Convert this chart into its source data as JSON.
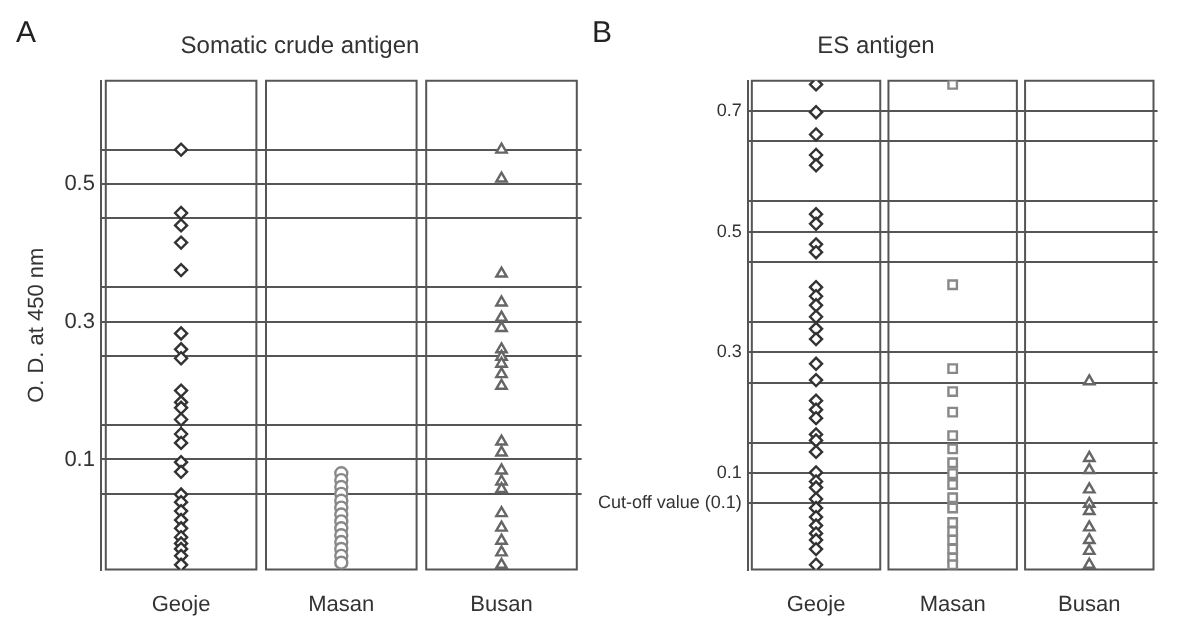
{
  "chart_data": [
    {
      "type": "scatter",
      "title": "Somatic crude antigen",
      "ylabel": "O. D. at 450 nm",
      "annotations": [
        "A"
      ],
      "categories": [
        "Geoje",
        "Masan",
        "Busan"
      ],
      "ylim": [
        -0.06,
        0.65
      ],
      "yticks": [
        {
          "value": 0.05,
          "label": null
        },
        {
          "value": 0.1,
          "label": "0.1"
        },
        {
          "value": 0.15,
          "label": null
        },
        {
          "value": 0.25,
          "label": null
        },
        {
          "value": 0.3,
          "label": "0.3"
        },
        {
          "value": 0.35,
          "label": null
        },
        {
          "value": 0.45,
          "label": null
        },
        {
          "value": 0.5,
          "label": "0.5"
        },
        {
          "value": 0.55,
          "label": null
        }
      ],
      "grid": "y",
      "series": [
        {
          "color": "#333333",
          "marker": "diamond",
          "x": [
            "Geoje",
            "Geoje",
            "Geoje",
            "Geoje",
            "Geoje",
            "Geoje",
            "Geoje",
            "Geoje",
            "Geoje",
            "Geoje",
            "Geoje",
            "Geoje",
            "Geoje",
            "Geoje",
            "Geoje",
            "Geoje",
            "Geoje",
            "Geoje",
            "Geoje",
            "Geoje",
            "Geoje",
            "Geoje",
            "Geoje",
            "Geoje",
            "Geoje",
            "Geoje"
          ],
          "values": [
            0.55,
            0.458,
            0.44,
            0.415,
            0.375,
            0.283,
            0.26,
            0.247,
            0.2,
            0.183,
            0.175,
            0.158,
            0.137,
            0.124,
            0.096,
            0.082,
            0.049,
            0.038,
            0.025,
            0.012,
            0.0,
            -0.013,
            -0.022,
            -0.03,
            -0.04,
            -0.053
          ]
        },
        {
          "color": "#888888",
          "marker": "circle",
          "x": [
            "Masan",
            "Masan",
            "Masan",
            "Masan",
            "Masan",
            "Masan",
            "Masan",
            "Masan",
            "Masan",
            "Masan",
            "Masan",
            "Masan",
            "Masan",
            "Masan"
          ],
          "values": [
            0.08,
            0.07,
            0.06,
            0.05,
            0.04,
            0.03,
            0.02,
            0.01,
            0.0,
            -0.01,
            -0.02,
            -0.03,
            -0.04,
            -0.05
          ]
        },
        {
          "color": "#666666",
          "marker": "triangle",
          "x": [
            "Busan",
            "Busan",
            "Busan",
            "Busan",
            "Busan",
            "Busan",
            "Busan",
            "Busan",
            "Busan",
            "Busan",
            "Busan",
            "Busan",
            "Busan",
            "Busan",
            "Busan",
            "Busan",
            "Busan",
            "Busan",
            "Busan",
            "Busan",
            "Busan"
          ],
          "values": [
            0.55,
            0.508,
            0.37,
            0.328,
            0.306,
            0.291,
            0.26,
            0.249,
            0.239,
            0.224,
            0.207,
            0.126,
            0.11,
            0.084,
            0.068,
            0.057,
            0.022,
            0.001,
            -0.018,
            -0.035,
            -0.053
          ]
        }
      ]
    },
    {
      "type": "scatter",
      "title": "ES antigen",
      "annotations": [
        "B"
      ],
      "categories": [
        "Geoje",
        "Masan",
        "Busan"
      ],
      "ylim": [
        -0.06,
        0.75
      ],
      "yticks": [
        {
          "value": 0.05,
          "label": "Cut-off value (0.1)"
        },
        {
          "value": 0.1,
          "label": "0.1"
        },
        {
          "value": 0.15,
          "label": null
        },
        {
          "value": 0.25,
          "label": null
        },
        {
          "value": 0.3,
          "label": "0.3"
        },
        {
          "value": 0.35,
          "label": null
        },
        {
          "value": 0.45,
          "label": null
        },
        {
          "value": 0.5,
          "label": "0.5"
        },
        {
          "value": 0.55,
          "label": null
        },
        {
          "value": 0.65,
          "label": null
        },
        {
          "value": 0.7,
          "label": "0.7"
        }
      ],
      "grid": "y",
      "series": [
        {
          "color": "#333333",
          "marker": "diamond",
          "x": [
            "Geoje",
            "Geoje",
            "Geoje",
            "Geoje",
            "Geoje",
            "Geoje",
            "Geoje",
            "Geoje",
            "Geoje",
            "Geoje",
            "Geoje",
            "Geoje",
            "Geoje",
            "Geoje",
            "Geoje",
            "Geoje",
            "Geoje",
            "Geoje",
            "Geoje",
            "Geoje",
            "Geoje",
            "Geoje",
            "Geoje",
            "Geoje",
            "Geoje",
            "Geoje",
            "Geoje",
            "Geoje",
            "Geoje",
            "Geoje",
            "Geoje",
            "Geoje",
            "Geoje",
            "Geoje"
          ],
          "values": [
            0.744,
            0.698,
            0.661,
            0.627,
            0.61,
            0.529,
            0.513,
            0.479,
            0.466,
            0.408,
            0.393,
            0.378,
            0.359,
            0.339,
            0.322,
            0.281,
            0.254,
            0.22,
            0.205,
            0.191,
            0.164,
            0.154,
            0.135,
            0.101,
            0.086,
            0.076,
            0.057,
            0.042,
            0.027,
            0.013,
            0.0,
            -0.011,
            -0.026,
            -0.052
          ]
        },
        {
          "color": "#888888",
          "marker": "square",
          "x": [
            "Masan",
            "Masan",
            "Masan",
            "Masan",
            "Masan",
            "Masan",
            "Masan",
            "Masan",
            "Masan",
            "Masan",
            "Masan",
            "Masan",
            "Masan",
            "Masan",
            "Masan",
            "Masan",
            "Masan",
            "Masan"
          ],
          "values": [
            0.744,
            0.412,
            0.273,
            0.235,
            0.201,
            0.162,
            0.14,
            0.117,
            0.099,
            0.081,
            0.059,
            0.042,
            0.018,
            0.003,
            -0.011,
            -0.026,
            -0.041,
            -0.052
          ]
        },
        {
          "color": "#666666",
          "marker": "triangle",
          "x": [
            "Busan",
            "Busan",
            "Busan",
            "Busan",
            "Busan",
            "Busan",
            "Busan",
            "Busan",
            "Busan",
            "Busan"
          ],
          "values": [
            0.252,
            0.125,
            0.105,
            0.073,
            0.049,
            0.037,
            0.01,
            -0.011,
            -0.029,
            -0.052
          ]
        }
      ]
    }
  ]
}
